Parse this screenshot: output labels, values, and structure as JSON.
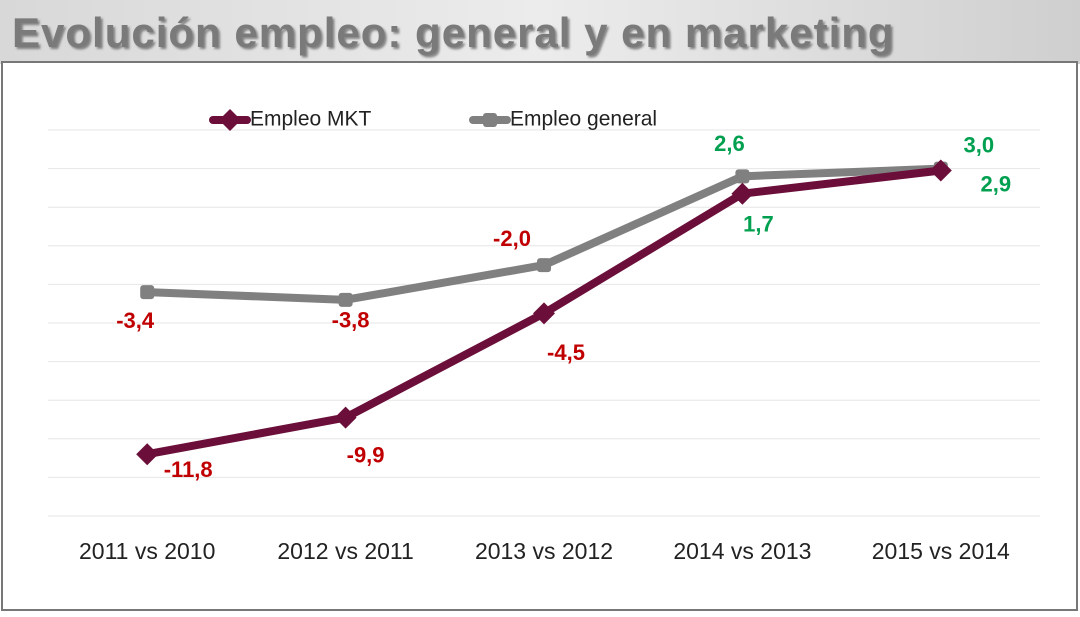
{
  "chart_data": {
    "type": "line",
    "title": "Evolución empleo: general y en marketing",
    "categories": [
      "2011 vs 2010",
      "2012 vs 2011",
      "2013 vs 2012",
      "2014 vs 2013",
      "2015 vs 2014"
    ],
    "series": [
      {
        "name": "Empleo MKT",
        "color": "#6b0f3a",
        "marker": "diamond",
        "values": [
          -11.8,
          -9.9,
          -4.5,
          1.7,
          2.9
        ],
        "value_labels": [
          "-11,8",
          "-9,9",
          "-4,5",
          "1,7",
          "2,9"
        ]
      },
      {
        "name": "Empleo general",
        "color": "#808080",
        "marker": "square",
        "values": [
          -3.4,
          -3.8,
          -2.0,
          2.6,
          3.0
        ],
        "value_labels": [
          "-3,4",
          "-3,8",
          "-2,0",
          "2,6",
          "3,0"
        ]
      }
    ],
    "ylim": [
      -15,
      5
    ],
    "yticks": [
      -15,
      -13,
      -11,
      -9,
      -7,
      -5,
      -3,
      -1,
      1,
      3,
      5
    ],
    "grid": true,
    "legend": "top",
    "negative_label_color": "#c00000",
    "positive_label_color": "#00a050"
  }
}
